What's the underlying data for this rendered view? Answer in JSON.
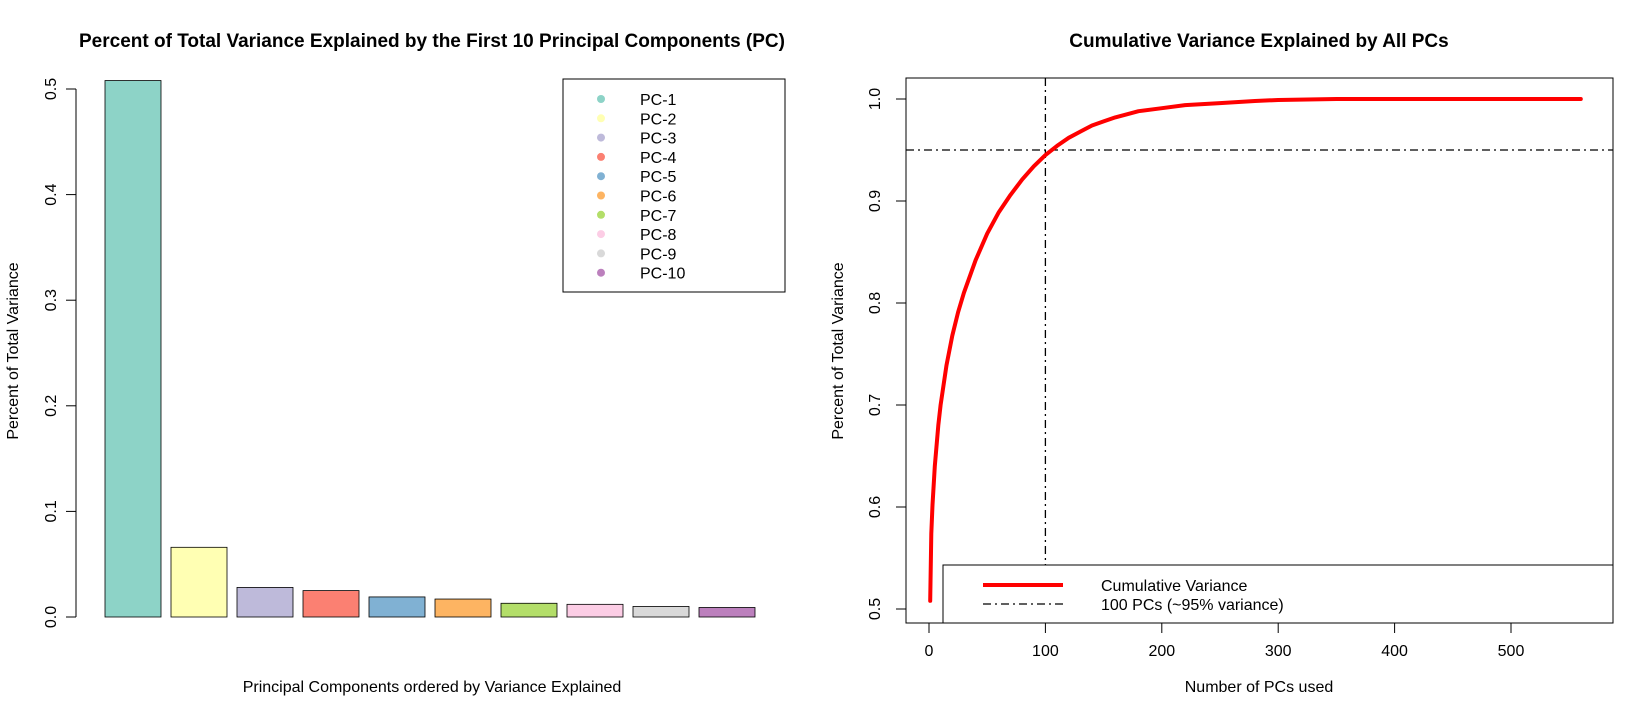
{
  "chart_data": [
    {
      "type": "bar",
      "title": "Percent of Total Variance Explained by the First 10 Principal Components (PC)",
      "xlabel": "Principal Components ordered by Variance Explained",
      "ylabel": "Percent of Total Variance",
      "ylim": [
        0,
        0.5
      ],
      "yticks": [
        "0.0",
        "0.1",
        "0.2",
        "0.3",
        "0.4",
        "0.5"
      ],
      "categories": [
        "PC-1",
        "PC-2",
        "PC-3",
        "PC-4",
        "PC-5",
        "PC-6",
        "PC-7",
        "PC-8",
        "PC-9",
        "PC-10"
      ],
      "values": [
        0.508,
        0.066,
        0.028,
        0.025,
        0.019,
        0.017,
        0.013,
        0.012,
        0.01,
        0.009
      ],
      "colors": [
        "#8DD3C7",
        "#FFFFB3",
        "#BEBADA",
        "#FB8072",
        "#80B1D3",
        "#FDB462",
        "#B3DE69",
        "#FCCDE5",
        "#D9D9D9",
        "#BC80BD"
      ],
      "legend": {
        "position": "top-right",
        "entries": [
          "PC-1",
          "PC-2",
          "PC-3",
          "PC-4",
          "PC-5",
          "PC-6",
          "PC-7",
          "PC-8",
          "PC-9",
          "PC-10"
        ]
      },
      "grid": false
    },
    {
      "type": "line",
      "title": "Cumulative Variance Explained by All PCs",
      "xlabel": "Number of PCs used",
      "ylabel": "Percent of Total Variance",
      "xlim": [
        0,
        560
      ],
      "ylim": [
        0.5,
        1.0
      ],
      "xticks": [
        "0",
        "100",
        "200",
        "300",
        "400",
        "500"
      ],
      "yticks": [
        "0.5",
        "0.6",
        "0.7",
        "0.8",
        "0.9",
        "1.0"
      ],
      "series": [
        {
          "name": "Cumulative Variance",
          "color": "#FF0000",
          "x": [
            1,
            2,
            3,
            5,
            8,
            10,
            15,
            20,
            25,
            30,
            40,
            50,
            60,
            70,
            80,
            90,
            100,
            110,
            120,
            130,
            140,
            150,
            160,
            170,
            180,
            200,
            220,
            250,
            280,
            300,
            350,
            400,
            450,
            500,
            560
          ],
          "values": [
            0.508,
            0.574,
            0.602,
            0.64,
            0.68,
            0.7,
            0.739,
            0.768,
            0.791,
            0.81,
            0.842,
            0.868,
            0.889,
            0.906,
            0.921,
            0.934,
            0.945,
            0.954,
            0.962,
            0.968,
            0.974,
            0.978,
            0.982,
            0.985,
            0.988,
            0.991,
            0.994,
            0.996,
            0.998,
            0.999,
            1.0,
            1.0,
            1.0,
            1.0,
            1.0
          ]
        }
      ],
      "reference_lines": {
        "vline_x": 100,
        "hline_y": 0.95,
        "style": "dash-dot",
        "label": "100 PCs (~95% variance)"
      },
      "legend": {
        "position": "bottom",
        "entries": [
          "Cumulative Variance",
          "100 PCs (~95% variance)"
        ]
      },
      "grid": false
    }
  ]
}
